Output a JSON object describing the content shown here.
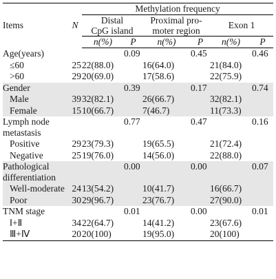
{
  "header": {
    "items_label": "Items",
    "n_label": "N",
    "methylation_label": "Methylation frequency",
    "groups": [
      {
        "line1": "Distal",
        "line2": "CpG island"
      },
      {
        "line1": "Proximal pro-",
        "line2": "moter region"
      },
      {
        "line1": "Exon 1",
        "line2": ""
      }
    ],
    "sub_pct": "n(%)",
    "sub_p": "P"
  },
  "rows": [
    {
      "kind": "group",
      "label": "Age(years)",
      "label2": "",
      "n": "",
      "p1": "0.09",
      "p2": "0.45",
      "p3": "0.46",
      "shade": false
    },
    {
      "kind": "sub",
      "label": "≤60",
      "n": "25",
      "v1": "22(88.0)",
      "v2": "16(64.0)",
      "v3": "21(84.0)",
      "shade": false
    },
    {
      "kind": "sub",
      "label": ">60",
      "n": "29",
      "v1": "20(69.0)",
      "v2": "17(58.6)",
      "v3": "22(75.9)",
      "shade": false
    },
    {
      "kind": "group",
      "label": "Gender",
      "label2": "",
      "p1": "0.39",
      "p2": "0.17",
      "p3": "0.74",
      "shade": true
    },
    {
      "kind": "sub",
      "label": "Male",
      "n": "39",
      "v1": "32(82.1)",
      "v2": "26(66.7)",
      "v3": "32(82.1)",
      "shade": true
    },
    {
      "kind": "sub",
      "label": "Female",
      "n": "15",
      "v1": "10(66.7)",
      "v2": "7(46.7)",
      "v3": "11(73.3)",
      "shade": true
    },
    {
      "kind": "group2",
      "label": "Lymph node",
      "label2": "metastasis",
      "p1": "0.77",
      "p2": "0.47",
      "p3": "0.16",
      "shade": false
    },
    {
      "kind": "sub",
      "label": "Positive",
      "n": "29",
      "v1": "23(79.3)",
      "v2": "19(65.5)",
      "v3": "21(72.4)",
      "shade": false
    },
    {
      "kind": "sub",
      "label": "Negative",
      "n": "25",
      "v1": "19(76.0)",
      "v2": "14(56.0)",
      "v3": "22(88.0)",
      "shade": false
    },
    {
      "kind": "group2",
      "label": "Pathological",
      "label2": "differentiation",
      "p1": "0.00",
      "p2": "0.00",
      "p3": "0.07",
      "shade": true
    },
    {
      "kind": "sub",
      "label": "Well-moderate",
      "n": "24",
      "v1": "13(54.2)",
      "v2": "10(41.7)",
      "v3": "16(66.7)",
      "shade": true
    },
    {
      "kind": "sub",
      "label": "Poor",
      "n": "30",
      "v1": "29(96.7)",
      "v2": "23(76.7)",
      "v3": "27(90.0)",
      "shade": true
    },
    {
      "kind": "group",
      "label": "TNM stage",
      "label2": "",
      "p1": "0.01",
      "p2": "0.00",
      "p3": "0.01",
      "shade": false
    },
    {
      "kind": "sub",
      "label": "Ⅰ+Ⅱ",
      "n": "34",
      "v1": "22(64.7)",
      "v2": "14(41.2)",
      "v3": "23(67.6)",
      "shade": false
    },
    {
      "kind": "sub",
      "label": "Ⅲ+Ⅳ",
      "n": "20",
      "v1": "20(100)",
      "v2": "19(95.0)",
      "v3": "20(100)",
      "shade": false
    }
  ]
}
